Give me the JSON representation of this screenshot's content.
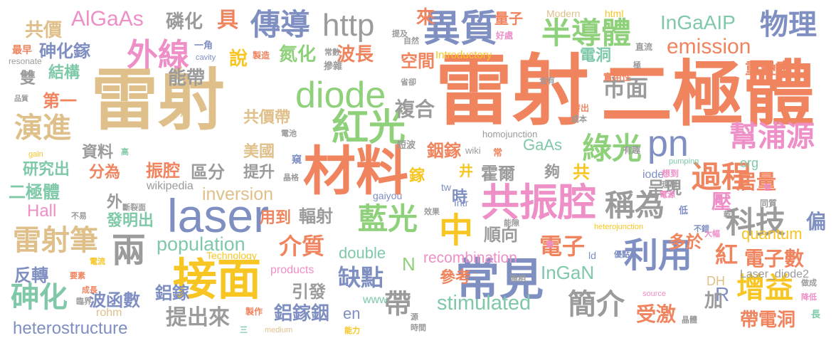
{
  "words": [
    {
      "text": "雷射",
      "color": "#e0c08a"
    },
    {
      "text": "雷射",
      "color": "#f0845f"
    },
    {
      "text": "二極體",
      "color": "#f0845f"
    },
    {
      "text": "材料",
      "color": "#f0845f"
    },
    {
      "text": "laser",
      "color": "#7f8fc2"
    },
    {
      "text": "接面",
      "color": "#f7c623"
    },
    {
      "text": "常見",
      "color": "#7f8fc2"
    },
    {
      "text": "共振腔",
      "color": "#ee8fc7"
    },
    {
      "text": "diode",
      "color": "#8fd17a"
    },
    {
      "text": "紅光",
      "color": "#8fd17a"
    },
    {
      "text": "異質",
      "color": "#7f8fc2"
    },
    {
      "text": "pn",
      "color": "#7f8fc2"
    },
    {
      "text": "中",
      "color": "#f7c623"
    },
    {
      "text": "兩",
      "color": "#9b9b9b"
    },
    {
      "text": "利用",
      "color": "#7f8fc2"
    },
    {
      "text": "外線",
      "color": "#ee8fc7"
    },
    {
      "text": "傳導",
      "color": "#7f8fc2"
    },
    {
      "text": "半導體",
      "color": "#8fd17a"
    },
    {
      "text": "藍光",
      "color": "#8fd17a"
    },
    {
      "text": "綠光",
      "color": "#8fd17a"
    },
    {
      "text": "過程",
      "color": "#f0845f"
    },
    {
      "text": "幫浦源",
      "color": "#ee8fc7"
    },
    {
      "text": "http",
      "color": "#9b9b9b"
    },
    {
      "text": "物理",
      "color": "#7f8fc2"
    },
    {
      "text": "增益",
      "color": "#f7c623"
    },
    {
      "text": "科技",
      "color": "#9b9b9b"
    },
    {
      "text": "稱為",
      "color": "#9b9b9b"
    },
    {
      "text": "簡介",
      "color": "#9b9b9b"
    },
    {
      "text": "砷化",
      "color": "#7fc9a8"
    },
    {
      "text": "雷射筆",
      "color": "#e0c08a"
    },
    {
      "text": "演進",
      "color": "#e0c08a"
    },
    {
      "text": "emission",
      "color": "#f0845f"
    },
    {
      "text": "InGaAIP",
      "color": "#7fc9a8"
    },
    {
      "text": "AlGaAs",
      "color": "#ee8fc7"
    },
    {
      "text": "population",
      "color": "#7fc9a8"
    },
    {
      "text": "inversion",
      "color": "#e0c08a"
    },
    {
      "text": "stimulated",
      "color": "#7fc9a8"
    },
    {
      "text": "heterostructure",
      "color": "#7f8fc2"
    },
    {
      "text": "recombination",
      "color": "#ee8fc7"
    },
    {
      "text": "double",
      "color": "#7fc9a8"
    },
    {
      "text": "quantum",
      "color": "#f7c623"
    },
    {
      "text": "InGaN",
      "color": "#7fc9a8"
    },
    {
      "text": "GaAs",
      "color": "#7fc9a8"
    },
    {
      "text": "市面",
      "color": "#9b9b9b"
    },
    {
      "text": "複合",
      "color": "#9b9b9b"
    },
    {
      "text": "介質",
      "color": "#f0845f"
    },
    {
      "text": "缺點",
      "color": "#7f8fc2"
    },
    {
      "text": "電子",
      "color": "#f0845f"
    },
    {
      "text": "電子數",
      "color": "#f0845f"
    },
    {
      "text": "帶電洞",
      "color": "#f0845f"
    },
    {
      "text": "受激",
      "color": "#f0845f"
    },
    {
      "text": "紅",
      "color": "#f0845f"
    },
    {
      "text": "居量",
      "color": "#f0845f"
    },
    {
      "text": "壓",
      "color": "#ee8fc7"
    },
    {
      "text": "偏",
      "color": "#7f8fc2"
    },
    {
      "text": "R",
      "color": "#7f8fc2"
    },
    {
      "text": "加",
      "color": "#9b9b9b"
    },
    {
      "text": "帶",
      "color": "#9b9b9b"
    },
    {
      "text": "提出來",
      "color": "#9b9b9b"
    },
    {
      "text": "鋁鎵銦",
      "color": "#7f8fc2"
    },
    {
      "text": "鋁鎵",
      "color": "#7f8fc2"
    },
    {
      "text": "波函數",
      "color": "#7f8fc2"
    },
    {
      "text": "反轉",
      "color": "#7f8fc2"
    },
    {
      "text": "砷化鎵",
      "color": "#7f8fc2"
    },
    {
      "text": "共價",
      "color": "#e0c08a"
    },
    {
      "text": "磷化",
      "color": "#9b9b9b"
    },
    {
      "text": "具",
      "color": "#f0845f"
    },
    {
      "text": "氮化",
      "color": "#8fd17a"
    },
    {
      "text": "說",
      "color": "#f7c623"
    },
    {
      "text": "能帶",
      "color": "#9b9b9b"
    },
    {
      "text": "波長",
      "color": "#f0845f"
    },
    {
      "text": "空間",
      "color": "#f0845f"
    },
    {
      "text": "電洞",
      "color": "#7fc9a8"
    },
    {
      "text": "重疊率",
      "color": "#f0845f"
    },
    {
      "text": "共價帶",
      "color": "#e0c08a"
    },
    {
      "text": "美國",
      "color": "#e0c08a"
    },
    {
      "text": "提升",
      "color": "#9b9b9b"
    },
    {
      "text": "區分",
      "color": "#9b9b9b"
    },
    {
      "text": "振腔",
      "color": "#f0845f"
    },
    {
      "text": "分為",
      "color": "#f0845f"
    },
    {
      "text": "二極體",
      "color": "#7fc9a8"
    },
    {
      "text": "研究出",
      "color": "#7fc9a8"
    },
    {
      "text": "資料",
      "color": "#9b9b9b"
    },
    {
      "text": "第一",
      "color": "#f0845f"
    },
    {
      "text": "結構",
      "color": "#7fc9a8"
    },
    {
      "text": "雙",
      "color": "#9b9b9b"
    },
    {
      "text": "Hall",
      "color": "#ee8fc7"
    },
    {
      "text": "銦鎵",
      "color": "#f0845f"
    },
    {
      "text": "鎵",
      "color": "#f7c623"
    },
    {
      "text": "霍爾",
      "color": "#9b9b9b"
    },
    {
      "text": "夠",
      "color": "#9b9b9b"
    },
    {
      "text": "共",
      "color": "#f7c623"
    },
    {
      "text": "井",
      "color": "#f7c623"
    },
    {
      "text": "呈現",
      "color": "#9b9b9b"
    },
    {
      "text": "時",
      "color": "#7f8fc2"
    },
    {
      "text": "順向",
      "color": "#9b9b9b"
    },
    {
      "text": "多於",
      "color": "#f0845f"
    },
    {
      "text": "輻射",
      "color": "#9b9b9b"
    },
    {
      "text": "用到",
      "color": "#f0845f"
    },
    {
      "text": "發明出",
      "color": "#7fc9a8"
    },
    {
      "text": "外",
      "color": "#9b9b9b"
    },
    {
      "text": "引發",
      "color": "#9b9b9b"
    },
    {
      "text": "參考",
      "color": "#f0845f"
    },
    {
      "text": "N",
      "color": "#8fd17a"
    },
    {
      "text": "量子",
      "color": "#f0845f"
    },
    {
      "text": "來",
      "color": "#f0845f"
    },
    {
      "text": "org",
      "color": "#7fc9a8"
    },
    {
      "text": "en",
      "color": "#7f8fc2"
    },
    {
      "text": "www",
      "color": "#7fc9a8"
    },
    {
      "text": "Introductory",
      "color": "#f7c623"
    },
    {
      "text": "Modern",
      "color": "#e0c08a"
    },
    {
      "text": "html",
      "color": "#f7c623"
    },
    {
      "text": "wikipedia",
      "color": "#9b9b9b"
    },
    {
      "text": "homojunction",
      "color": "#9b9b9b"
    },
    {
      "text": "wiki",
      "color": "#9b9b9b"
    },
    {
      "text": "iode",
      "color": "#7f8fc2"
    },
    {
      "text": "products",
      "color": "#ee8fc7"
    },
    {
      "text": "gaiyou",
      "color": "#7f8fc2"
    },
    {
      "text": "rohm",
      "color": "#e0c08a"
    },
    {
      "text": "Laser_diode2",
      "color": "#9b9b9b"
    },
    {
      "text": "DH",
      "color": "#e0c08a"
    },
    {
      "text": "ld",
      "color": "#7f8fc2"
    },
    {
      "text": "Technology",
      "color": "#f7c623"
    },
    {
      "text": "heterojunction",
      "color": "#f7c623"
    },
    {
      "text": "source",
      "color": "#ee8fc7"
    },
    {
      "text": "pumping",
      "color": "#7fc9a8"
    },
    {
      "text": "cavity",
      "color": "#7f8fc2"
    },
    {
      "text": "resonate",
      "color": "#9b9b9b"
    },
    {
      "text": "medium",
      "color": "#e0c08a"
    },
    {
      "text": "gain",
      "color": "#f7c623"
    },
    {
      "text": "tw",
      "color": "#7f8fc2"
    },
    {
      "text": "Intr",
      "color": "#7f8fc2"
    },
    {
      "text": "最早",
      "color": "#f0845f"
    },
    {
      "text": "品質",
      "color": "#9b9b9b"
    },
    {
      "text": "摻雜",
      "color": "#9b9b9b"
    },
    {
      "text": "一角",
      "color": "#7f8fc2"
    },
    {
      "text": "製造",
      "color": "#f0845f"
    },
    {
      "text": "常數",
      "color": "#9b9b9b"
    },
    {
      "text": "提及",
      "color": "#9b9b9b"
    },
    {
      "text": "自然",
      "color": "#9b9b9b"
    },
    {
      "text": "好處",
      "color": "#ee8fc7"
    },
    {
      "text": "省卻",
      "color": "#9b9b9b"
    },
    {
      "text": "含有",
      "color": "#9b9b9b"
    },
    {
      "text": "實用性",
      "color": "#f0845f"
    },
    {
      "text": "直流",
      "color": "#9b9b9b"
    },
    {
      "text": "發出",
      "color": "#f0845f"
    },
    {
      "text": "成本",
      "color": "#9b9b9b"
    },
    {
      "text": "短波",
      "color": "#9b9b9b"
    },
    {
      "text": "有趣",
      "color": "#9b9b9b"
    },
    {
      "text": "想到",
      "color": "#ee8fc7"
    },
    {
      "text": "理想",
      "color": "#9b9b9b"
    },
    {
      "text": "同質",
      "color": "#9b9b9b"
    },
    {
      "text": "電源",
      "color": "#ee8fc7"
    },
    {
      "text": "晶格",
      "color": "#9b9b9b"
    },
    {
      "text": "窺",
      "color": "#7f8fc2"
    },
    {
      "text": "高",
      "color": "#7fc9a8"
    },
    {
      "text": "常",
      "color": "#f0845f"
    },
    {
      "text": "幫",
      "color": "#e0c08a"
    },
    {
      "text": "電池",
      "color": "#9b9b9b"
    },
    {
      "text": "不易",
      "color": "#9b9b9b"
    },
    {
      "text": "斷裂面",
      "color": "#9b9b9b"
    },
    {
      "text": "效果",
      "color": "#9b9b9b"
    },
    {
      "text": "能隙",
      "color": "#9b9b9b"
    },
    {
      "text": "不錯",
      "color": "#7f8fc2"
    },
    {
      "text": "乾",
      "color": "#9b9b9b"
    },
    {
      "text": "低",
      "color": "#7f8fc2"
    },
    {
      "text": "大幅",
      "color": "#ee8fc7"
    },
    {
      "text": "優點",
      "color": "#7f8fc2"
    },
    {
      "text": "數",
      "color": "#ee8fc7"
    },
    {
      "text": "電流",
      "color": "#f7c623"
    },
    {
      "text": "要素",
      "color": "#f0845f"
    },
    {
      "text": "成長",
      "color": "#f0845f"
    },
    {
      "text": "臨界",
      "color": "#9b9b9b"
    },
    {
      "text": "製作",
      "color": "#f0845f"
    },
    {
      "text": "能力",
      "color": "#f7c623"
    },
    {
      "text": "源",
      "color": "#9b9b9b"
    },
    {
      "text": "時間",
      "color": "#9b9b9b"
    },
    {
      "text": "隙相",
      "color": "#9b9b9b"
    },
    {
      "text": "晶體",
      "color": "#9b9b9b"
    },
    {
      "text": "做成",
      "color": "#9b9b9b"
    },
    {
      "text": "降低",
      "color": "#ee8fc7"
    },
    {
      "text": "長",
      "color": "#7fc9a8"
    },
    {
      "text": "三",
      "color": "#7fc9a8"
    },
    {
      "text": "差",
      "color": "#ee8fc7"
    },
    {
      "text": "極",
      "color": "#9b9b9b"
    }
  ]
}
